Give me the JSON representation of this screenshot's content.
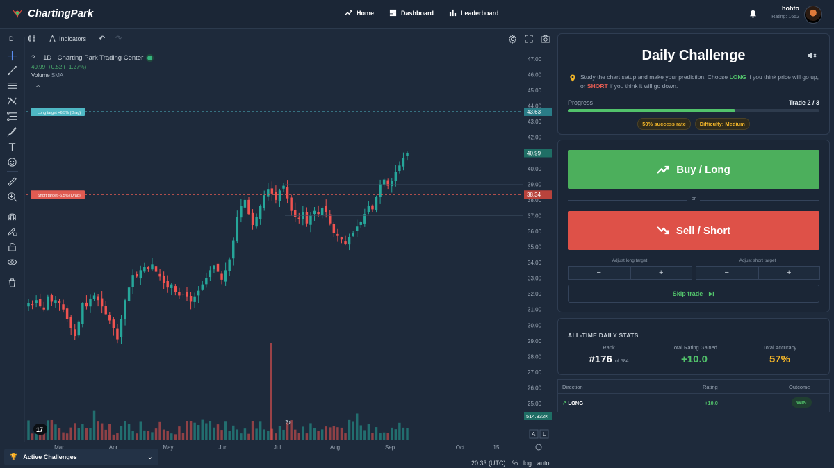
{
  "nav": {
    "brand": "ChartingPark",
    "links": [
      {
        "label": "Home",
        "icon": "trend-icon"
      },
      {
        "label": "Dashboard",
        "icon": "dashboard-icon"
      },
      {
        "label": "Leaderboard",
        "icon": "bar-chart-icon"
      }
    ],
    "user": {
      "name": "hohto",
      "rating": "Rating: 1652"
    }
  },
  "toolbar": {
    "interval": "D",
    "indicators_label": "Indicators"
  },
  "legend": {
    "symbol": "?",
    "title": "· 1D · Charting Park Trading Center",
    "last": "40.99",
    "change": "+0.52 (+1.27%)",
    "volume_label": "Volume",
    "volume_ma": "SMA"
  },
  "chart_data": {
    "type": "candlestick",
    "y_axis_labels": [
      "47.00",
      "46.00",
      "45.00",
      "44.00",
      "43.00",
      "42.00",
      "41.00",
      "40.00",
      "39.00",
      "38.00",
      "37.00",
      "36.00",
      "35.00",
      "34.00",
      "33.00",
      "32.00",
      "31.00",
      "30.00",
      "29.00",
      "28.00",
      "27.00",
      "26.00",
      "25.00"
    ],
    "x_axis_labels": [
      "Mar",
      "Apr",
      "May",
      "Jun",
      "Jul",
      "Aug",
      "Sep",
      "Oct",
      "15"
    ],
    "ylim": [
      24.5,
      47.5
    ],
    "last_price": "40.99",
    "long_target": {
      "label": "Long target +6.5% (Drag)",
      "price": "43.63",
      "value": 43.63
    },
    "short_target": {
      "label": "Short target -6.5% (Drag)",
      "price": "38.34",
      "value": 38.34
    },
    "volume_label": "514.332K",
    "price_path": [
      31.4,
      31.3,
      31.6,
      31.2,
      31.0,
      31.8,
      31.5,
      31.6,
      31.4,
      31.0,
      30.4,
      29.8,
      29.3,
      30.2,
      31.4,
      31.2,
      31.7,
      31.9,
      31.6,
      31.2,
      30.7,
      30.3,
      29.8,
      29.1,
      30.4,
      31.6,
      32.4,
      33.2,
      33.1,
      33.5,
      33.7,
      33.6,
      33.9,
      33.4,
      33.1,
      32.7,
      32.4,
      32.6,
      32.1,
      31.9,
      32.0,
      31.8,
      31.5,
      31.8,
      32.2,
      32.6,
      33.0,
      33.5,
      33.8,
      33.4,
      32.9,
      33.5,
      34.2,
      35.4,
      36.9,
      37.6,
      38.0,
      37.1,
      36.4,
      36.9,
      37.6,
      38.3,
      38.7,
      38.4,
      38.0,
      38.6,
      38.9,
      38.1,
      37.3,
      36.9,
      36.8,
      37.2,
      36.5,
      37.0,
      37.3,
      37.1,
      37.5,
      37.2,
      36.5,
      35.9,
      35.7,
      35.5,
      35.2,
      35.6,
      35.9,
      36.3,
      36.6,
      37.1,
      37.6,
      37.4,
      38.2,
      39.0,
      39.3,
      38.9,
      39.2,
      39.8,
      40.2,
      40.7,
      40.99
    ]
  },
  "bottom": {
    "active_challenges": "Active Challenges",
    "time": "20:33 (UTC)",
    "percent": "%",
    "log": "log",
    "auto": "auto",
    "a_btn": "A",
    "l_btn": "L"
  },
  "challenge": {
    "title": "Daily Challenge",
    "description_pre": "Study the chart setup and make your prediction. Choose ",
    "long_word": "LONG",
    "description_mid": " if you think price will go up, or ",
    "short_word": "SHORT",
    "description_post": " if you think it will go down.",
    "progress_label": "Progress",
    "progress_count": "Trade 2 / 3",
    "progress_fraction": 0.667,
    "success_rate": "50% success rate",
    "difficulty": "Difficulty: Medium"
  },
  "actions": {
    "buy": "Buy / Long",
    "or": "or",
    "sell": "Sell / Short",
    "adjust_long": "Adjust long target",
    "adjust_short": "Adjust short target",
    "minus": "−",
    "plus": "+",
    "skip": "Skip trade"
  },
  "stats": {
    "title": "ALL-TIME DAILY STATS",
    "rank_label": "Rank",
    "rank_value": "#176",
    "rank_of": "of 584",
    "gained_label": "Total Rating Gained",
    "gained_value": "+10.0",
    "accuracy_label": "Total Accuracy",
    "accuracy_value": "57%"
  },
  "history": {
    "headers": {
      "direction": "Direction",
      "rating": "Rating",
      "outcome": "Outcome"
    },
    "rows": [
      {
        "direction": "LONG",
        "rating": "+10.0",
        "outcome": "WIN"
      }
    ]
  },
  "colors": {
    "up": "#26a69a",
    "down": "#ef5350",
    "buy": "#4caf5c",
    "sell": "#de5148",
    "accent_gold": "#f0b429"
  }
}
